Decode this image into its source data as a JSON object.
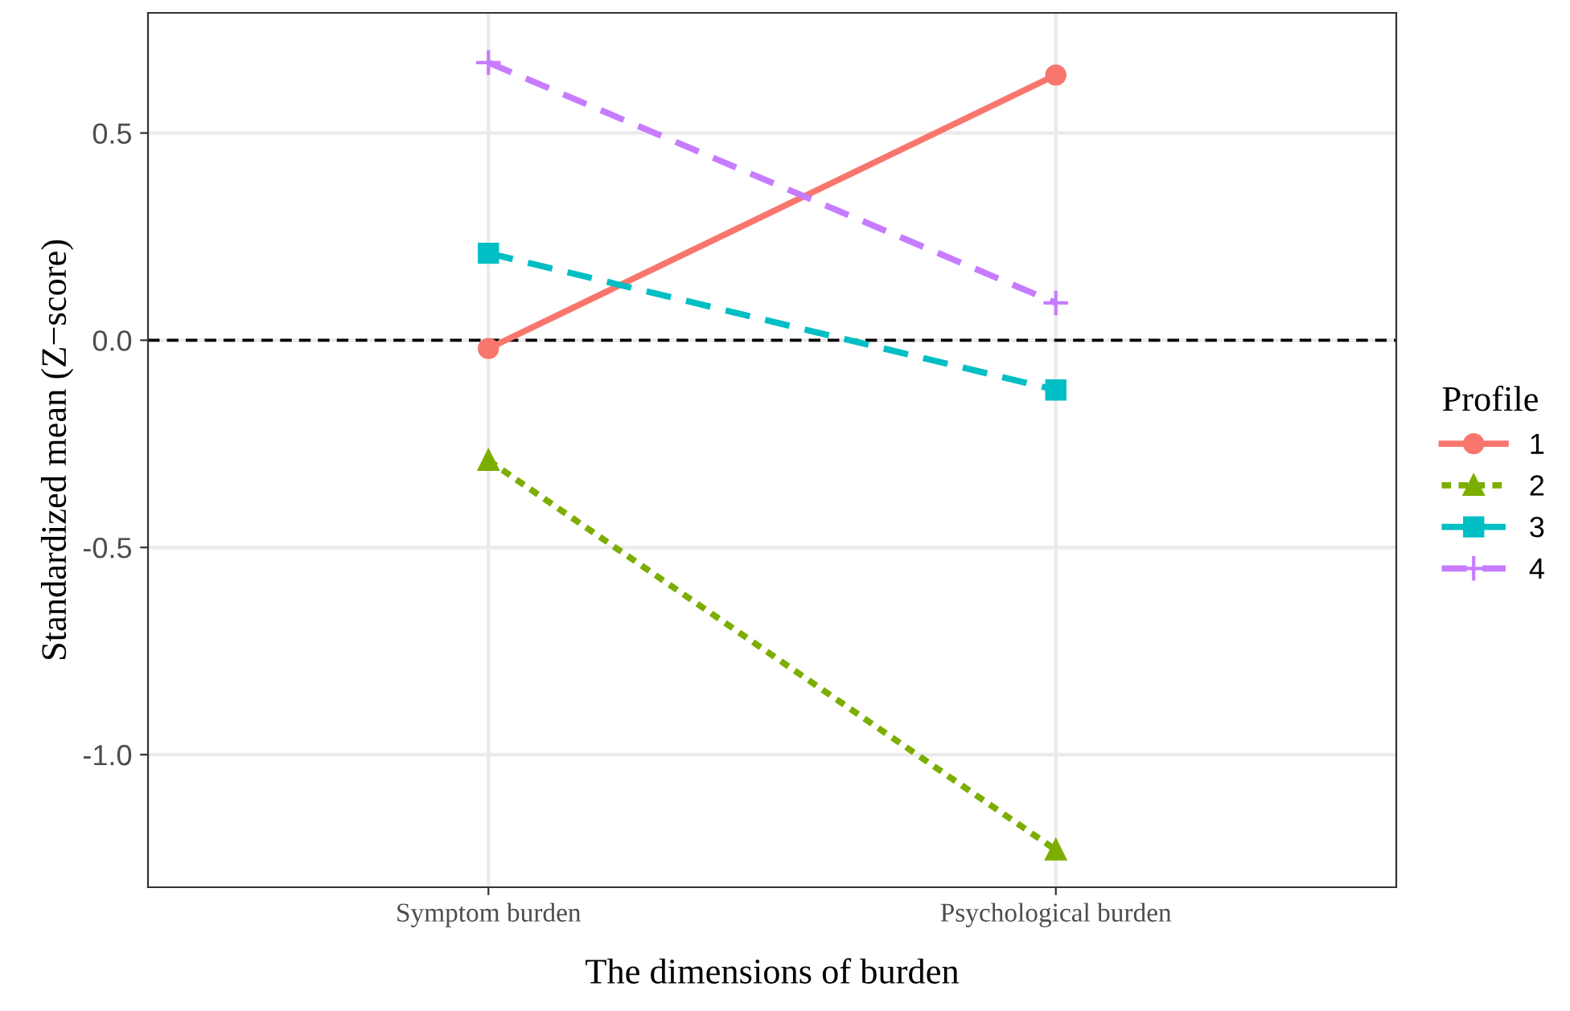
{
  "chart_data": {
    "type": "line",
    "xlabel": "The dimensions of burden",
    "ylabel": "Standardized mean (Z−score)",
    "legend_title": "Profile",
    "categories": [
      "Symptom burden",
      "Psychological burden"
    ],
    "series": [
      {
        "name": "1",
        "color": "#f8766d",
        "values": [
          -0.02,
          0.64
        ],
        "marker": "circle",
        "line_style": "solid"
      },
      {
        "name": "2",
        "color": "#7cae00",
        "values": [
          -0.29,
          -1.23
        ],
        "marker": "triangle",
        "line_style": "dotted"
      },
      {
        "name": "3",
        "color": "#00bfc4",
        "values": [
          0.21,
          -0.12
        ],
        "marker": "square",
        "line_style": "dashed"
      },
      {
        "name": "4",
        "color": "#c77cff",
        "values": [
          0.67,
          0.09
        ],
        "marker": "cross",
        "line_style": "dashed"
      }
    ],
    "ylim": [
      -1.32,
      0.79
    ],
    "yticks": [
      {
        "value": 0.5,
        "label": "0.5"
      },
      {
        "value": 0.0,
        "label": "0.0"
      },
      {
        "value": -0.5,
        "label": "-0.5"
      },
      {
        "value": -1.0,
        "label": "-1.0"
      }
    ],
    "ref_lines": [
      {
        "axis": "y",
        "value": 0,
        "color": "#000000",
        "line_style": "dashed"
      }
    ],
    "grid": true,
    "legend": "right"
  }
}
